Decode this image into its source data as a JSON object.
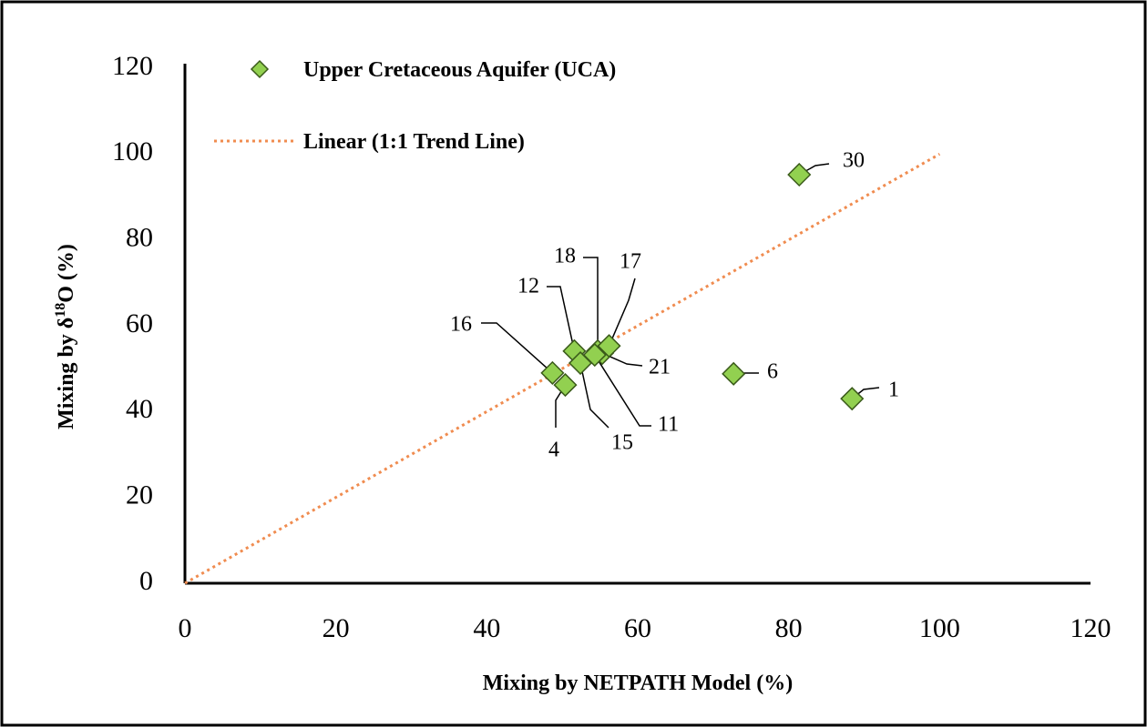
{
  "chart_data": {
    "type": "scatter",
    "x_label": "Mixing by NETPATH  Model  (%)",
    "y_label": {
      "prefix": "Mixing by δ",
      "sup": "18",
      "suffix": "O (%)"
    },
    "xlim": [
      0,
      120
    ],
    "xticks": [
      0,
      20,
      40,
      60,
      80,
      100,
      120
    ],
    "ylim": [
      0,
      120
    ],
    "yticks": [
      0,
      20,
      40,
      60,
      80,
      100,
      120
    ],
    "grid": false,
    "legend": "top-left",
    "series": [
      {
        "name": "Upper Cretaceous Aquifer (UCA)",
        "color": "#92d050",
        "labels": [
          "30",
          "1",
          "6",
          "16",
          "4",
          "12",
          "15",
          "18",
          "21",
          "11",
          "17"
        ],
        "x": [
          81.4,
          88.4,
          72.7,
          48.7,
          50.4,
          51.6,
          52.4,
          54.7,
          55.3,
          54.3,
          56.2
        ],
        "values": [
          95.2,
          43.0,
          48.8,
          49.0,
          46.2,
          54.1,
          51.3,
          54.1,
          53.6,
          53.2,
          55.3
        ]
      }
    ],
    "trend_line": {
      "name": "Linear (1:1 Trend Line)",
      "color": "#f08c50",
      "x": [
        0,
        100
      ],
      "values": [
        0,
        100
      ]
    }
  }
}
